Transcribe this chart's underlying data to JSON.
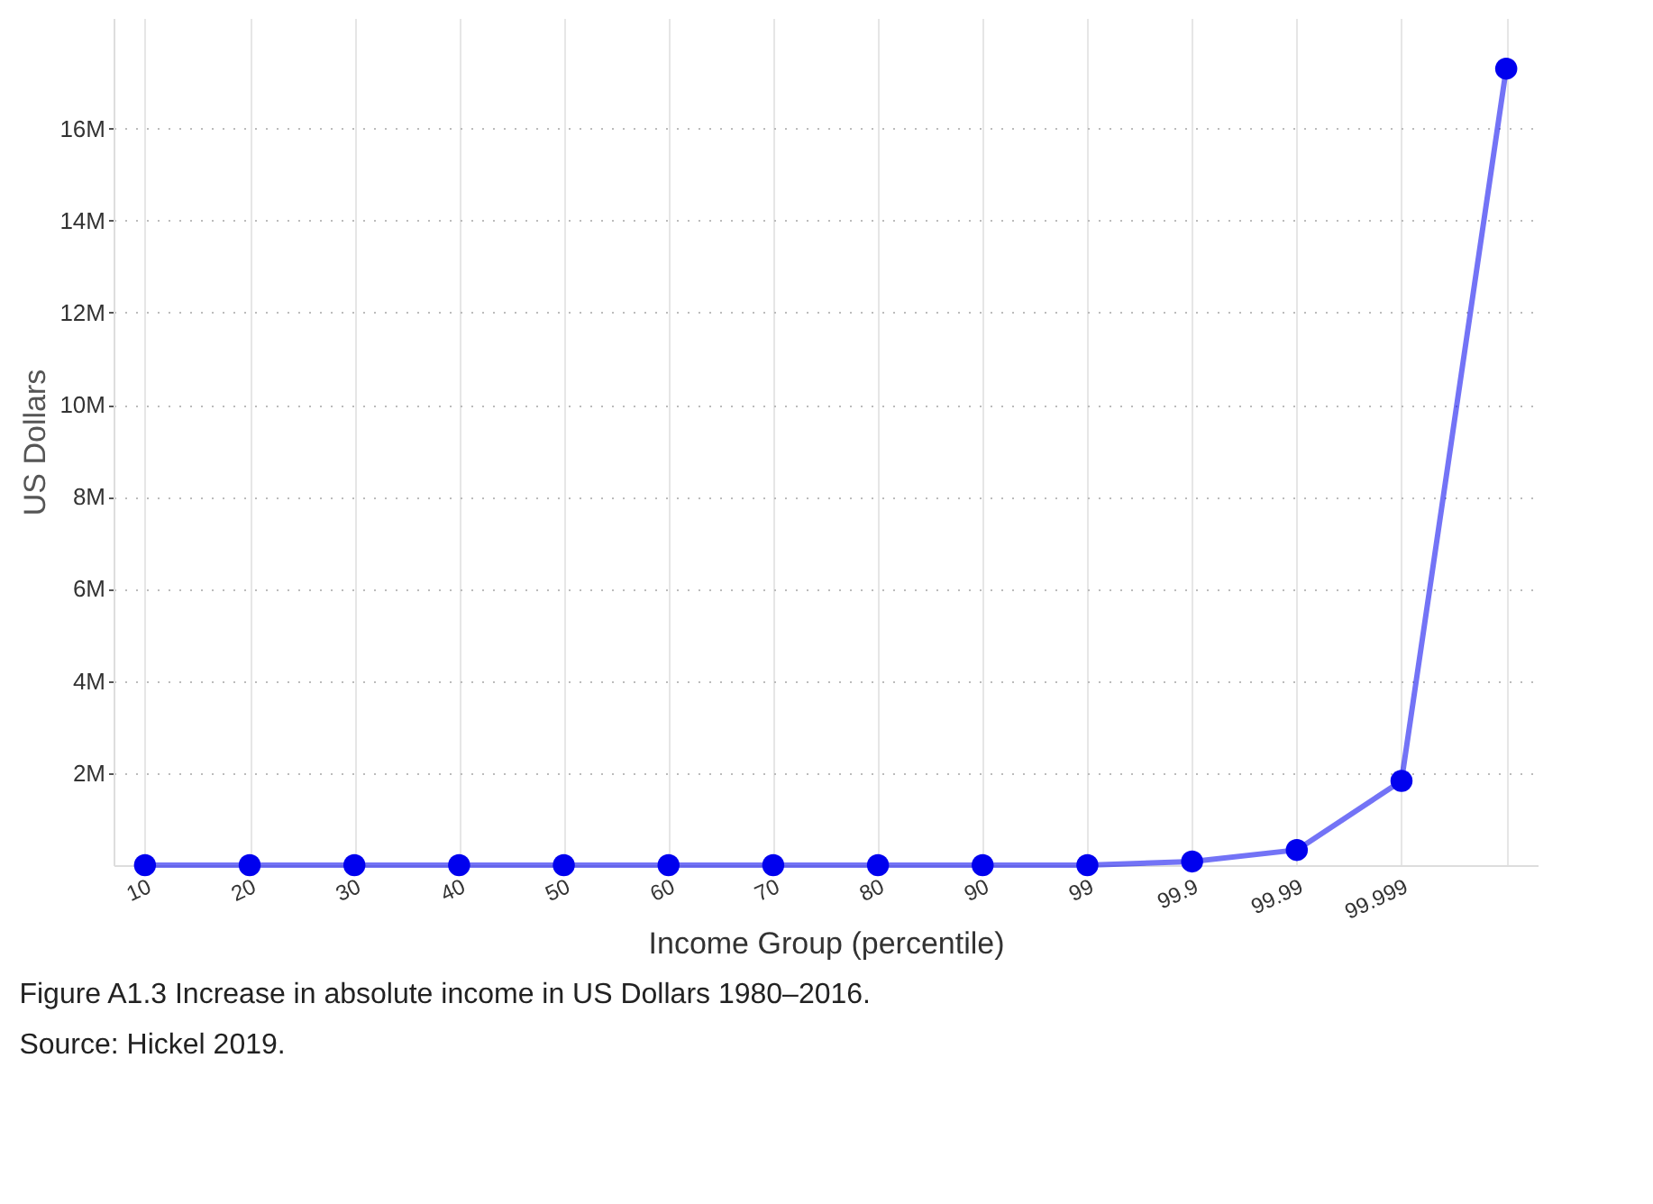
{
  "chart_data": {
    "type": "line",
    "xlabel": "Income Group (percentile)",
    "ylabel": "US Dollars",
    "categories": [
      "10",
      "20",
      "30",
      "40",
      "50",
      "60",
      "70",
      "80",
      "90",
      "99",
      "99.9",
      "99.99",
      "99.999",
      null
    ],
    "series": [
      {
        "color": "#0000ee",
        "values": [
          0,
          0,
          0,
          0,
          0,
          0,
          0,
          0,
          0,
          0,
          0.08,
          0.33,
          1.83,
          17.3
        ]
      }
    ],
    "ylim": [
      0,
      18.4
    ],
    "yticks": [
      {
        "value": 2,
        "label": "2M"
      },
      {
        "value": 4,
        "label": "4M"
      },
      {
        "value": 6,
        "label": "6M"
      },
      {
        "value": 8,
        "label": "8M"
      },
      {
        "value": 10,
        "label": "10M"
      },
      {
        "value": 12,
        "label": "12M"
      },
      {
        "value": 14,
        "label": "14M"
      },
      {
        "value": 16,
        "label": "16M"
      }
    ],
    "grid": true,
    "marker": "circle",
    "line_style": "solid",
    "annotations": [
      "Figure A1.3  Increase in absolute income in US Dollars 1980–2016.",
      "Source: Hickel 2019."
    ]
  }
}
